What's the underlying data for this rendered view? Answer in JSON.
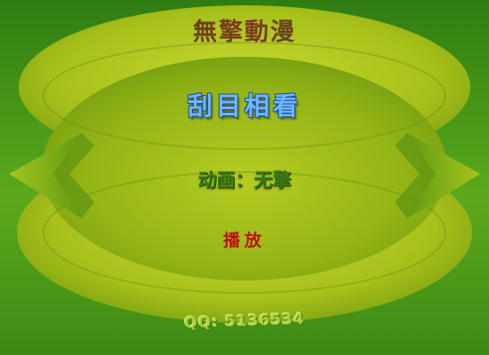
{
  "header": {
    "brand": "無擎動漫"
  },
  "main": {
    "title": "刮目相看",
    "credit": "动画：无擎",
    "play_label": "播放"
  },
  "footer": {
    "contact": "QQ: 5136534"
  },
  "colors": {
    "background": "#3c8a14",
    "ellipse": "#a9c218",
    "title": "#6fb6ff",
    "play": "#c01010"
  }
}
